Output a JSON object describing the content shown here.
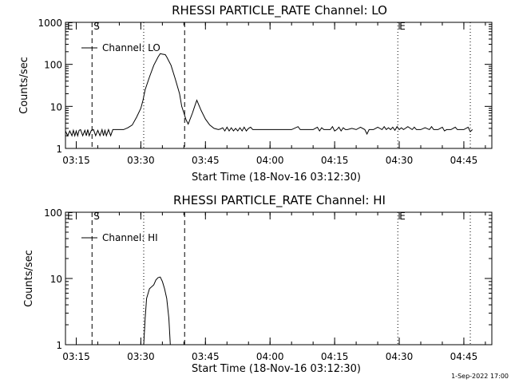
{
  "footer": {
    "timestamp": "1-Sep-2022 17:00"
  },
  "chart_data": [
    {
      "type": "line",
      "title": "RHESSI PARTICLE_RATE Channel: LO",
      "xlabel": "Start Time (18-Nov-16 03:12:30)",
      "ylabel": "Counts/sec",
      "xscale": "time (minutes after 03:12:30)",
      "yscale": "log",
      "xlim": [
        "03:12:30",
        "04:51:30"
      ],
      "ylim": [
        1,
        1000
      ],
      "xtick_labels": [
        "03:15",
        "03:30",
        "03:45",
        "04:00",
        "04:15",
        "04:30",
        "04:45"
      ],
      "ytick_labels": [
        "1",
        "10",
        "100",
        "1000"
      ],
      "legend": {
        "placement": "top-left",
        "entries": [
          "Channel: LO"
        ]
      },
      "markers": [
        {
          "label": "E",
          "x": "03:12:30",
          "style": "none"
        },
        {
          "label": "S",
          "x": "03:18:40",
          "style": "dashed"
        },
        {
          "label": "",
          "x": "03:30:40",
          "style": "dotted"
        },
        {
          "label": "",
          "x": "03:40:10",
          "style": "dashed"
        },
        {
          "label": "E",
          "x": "04:29:40",
          "style": "dotted"
        },
        {
          "label": "",
          "x": "04:46:30",
          "style": "dotted"
        }
      ],
      "series": [
        {
          "name": "Channel: LO",
          "x": [
            "03:12:30",
            "03:13:00",
            "03:13:30",
            "03:14:00",
            "03:14:20",
            "03:14:40",
            "03:15:00",
            "03:15:20",
            "03:15:40",
            "03:16:00",
            "03:16:30",
            "03:17:00",
            "03:17:20",
            "03:17:40",
            "03:18:00",
            "03:18:30",
            "03:19:00",
            "03:19:30",
            "03:20:00",
            "03:20:30",
            "03:21:00",
            "03:21:20",
            "03:21:40",
            "03:22:00",
            "03:22:30",
            "03:23:00",
            "03:23:30",
            "03:24:00",
            "03:25:00",
            "03:26:00",
            "03:27:00",
            "03:28:00",
            "03:29:00",
            "03:30:00",
            "03:30:30",
            "03:31:00",
            "03:32:00",
            "03:33:00",
            "03:34:00",
            "03:34:30",
            "03:35:00",
            "03:35:40",
            "03:36:00",
            "03:37:00",
            "03:38:00",
            "03:39:00",
            "03:39:30",
            "03:40:00",
            "03:40:30",
            "03:41:00",
            "03:42:00",
            "03:42:30",
            "03:43:00",
            "03:44:00",
            "03:45:00",
            "03:46:00",
            "03:47:00",
            "03:48:00",
            "03:48:30",
            "03:49:00",
            "03:49:30",
            "03:50:00",
            "03:50:30",
            "03:51:00",
            "03:51:30",
            "03:52:00",
            "03:52:30",
            "03:53:00",
            "03:53:30",
            "03:54:00",
            "03:54:30",
            "03:55:00",
            "03:55:30",
            "03:56:00",
            "04:00:00",
            "04:05:00",
            "04:06:30",
            "04:07:00",
            "04:07:30",
            "04:08:00",
            "04:10:00",
            "04:11:00",
            "04:11:30",
            "04:12:00",
            "04:12:30",
            "04:13:00",
            "04:14:00",
            "04:14:30",
            "04:15:00",
            "04:15:30",
            "04:16:00",
            "04:16:30",
            "04:17:00",
            "04:17:30",
            "04:18:00",
            "04:19:00",
            "04:20:00",
            "04:21:00",
            "04:22:00",
            "04:22:30",
            "04:23:00",
            "04:24:00",
            "04:25:00",
            "04:26:00",
            "04:26:30",
            "04:27:00",
            "04:27:30",
            "04:28:00",
            "04:28:30",
            "04:29:00",
            "04:29:30",
            "04:30:00",
            "04:30:30",
            "04:31:00",
            "04:32:00",
            "04:33:00",
            "04:33:30",
            "04:34:00",
            "04:35:00",
            "04:36:00",
            "04:37:00",
            "04:37:30",
            "04:38:00",
            "04:39:00",
            "04:40:00",
            "04:40:30",
            "04:41:00",
            "04:42:00",
            "04:43:00",
            "04:43:30",
            "04:44:00",
            "04:45:00",
            "04:46:00",
            "04:46:30",
            "04:47:00"
          ],
          "y": [
            2.6,
            2,
            2.6,
            2,
            2.7,
            2,
            2.6,
            2,
            2.7,
            2.8,
            2,
            2.7,
            2,
            2.8,
            2,
            2.7,
            2.8,
            2,
            2.7,
            2,
            2.8,
            2,
            2.7,
            2,
            2.8,
            2,
            2.8,
            2.8,
            2.8,
            2.8,
            3.1,
            3.6,
            5.5,
            9,
            14,
            25,
            50,
            95,
            150,
            180,
            175,
            170,
            150,
            95,
            45,
            20,
            10,
            7,
            4.8,
            3.8,
            7,
            10,
            14,
            8,
            5,
            3.6,
            3,
            2.8,
            2.9,
            3.1,
            2.6,
            3.2,
            2.6,
            3.1,
            2.6,
            3,
            2.6,
            3.1,
            2.6,
            3.2,
            2.6,
            3,
            3.2,
            2.8,
            2.8,
            2.8,
            3.3,
            2.8,
            2.8,
            2.8,
            2.8,
            3.2,
            2.6,
            3.1,
            2.8,
            2.8,
            2.8,
            3.3,
            2.6,
            2.8,
            3.2,
            2.6,
            3.1,
            2.8,
            2.8,
            3,
            2.8,
            3.2,
            2.8,
            2.2,
            2.8,
            2.8,
            3.2,
            2.8,
            3.3,
            2.8,
            3.1,
            2.8,
            3.2,
            2.7,
            3.3,
            2.8,
            3.1,
            2.8,
            3.3,
            2.8,
            3.2,
            2.8,
            2.8,
            3.1,
            2.8,
            3.3,
            2.8,
            2.8,
            3.2,
            2.6,
            2.8,
            2.8,
            3.2,
            2.8,
            2.8,
            2.8,
            3.2,
            2.5,
            2.8
          ]
        }
      ]
    },
    {
      "type": "line",
      "title": "RHESSI PARTICLE_RATE Channel: HI",
      "xlabel": "Start Time (18-Nov-16 03:12:30)",
      "ylabel": "Counts/sec",
      "xscale": "time (minutes after 03:12:30)",
      "yscale": "log",
      "xlim": [
        "03:12:30",
        "04:51:30"
      ],
      "ylim": [
        1,
        100
      ],
      "xtick_labels": [
        "03:15",
        "03:30",
        "03:45",
        "04:00",
        "04:15",
        "04:30",
        "04:45"
      ],
      "ytick_labels": [
        "1",
        "10",
        "100"
      ],
      "legend": {
        "placement": "top-left",
        "entries": [
          "Channel: HI"
        ]
      },
      "markers": [
        {
          "label": "E",
          "x": "03:12:30",
          "style": "none"
        },
        {
          "label": "S",
          "x": "03:18:40",
          "style": "dashed"
        },
        {
          "label": "",
          "x": "03:30:40",
          "style": "dotted"
        },
        {
          "label": "",
          "x": "03:40:10",
          "style": "dashed"
        },
        {
          "label": "E",
          "x": "04:29:40",
          "style": "dotted"
        },
        {
          "label": "",
          "x": "04:46:30",
          "style": "dotted"
        }
      ],
      "series": [
        {
          "name": "Channel: HI",
          "x": [
            "03:30:40",
            "03:31:00",
            "03:31:20",
            "03:32:00",
            "03:33:00",
            "03:33:30",
            "03:34:00",
            "03:34:30",
            "03:35:00",
            "03:35:30",
            "03:36:00",
            "03:36:30",
            "03:36:50"
          ],
          "y": [
            1,
            2.5,
            5,
            7,
            8,
            9.5,
            10.3,
            10.5,
            9,
            7,
            5,
            2.5,
            1
          ]
        }
      ]
    }
  ]
}
